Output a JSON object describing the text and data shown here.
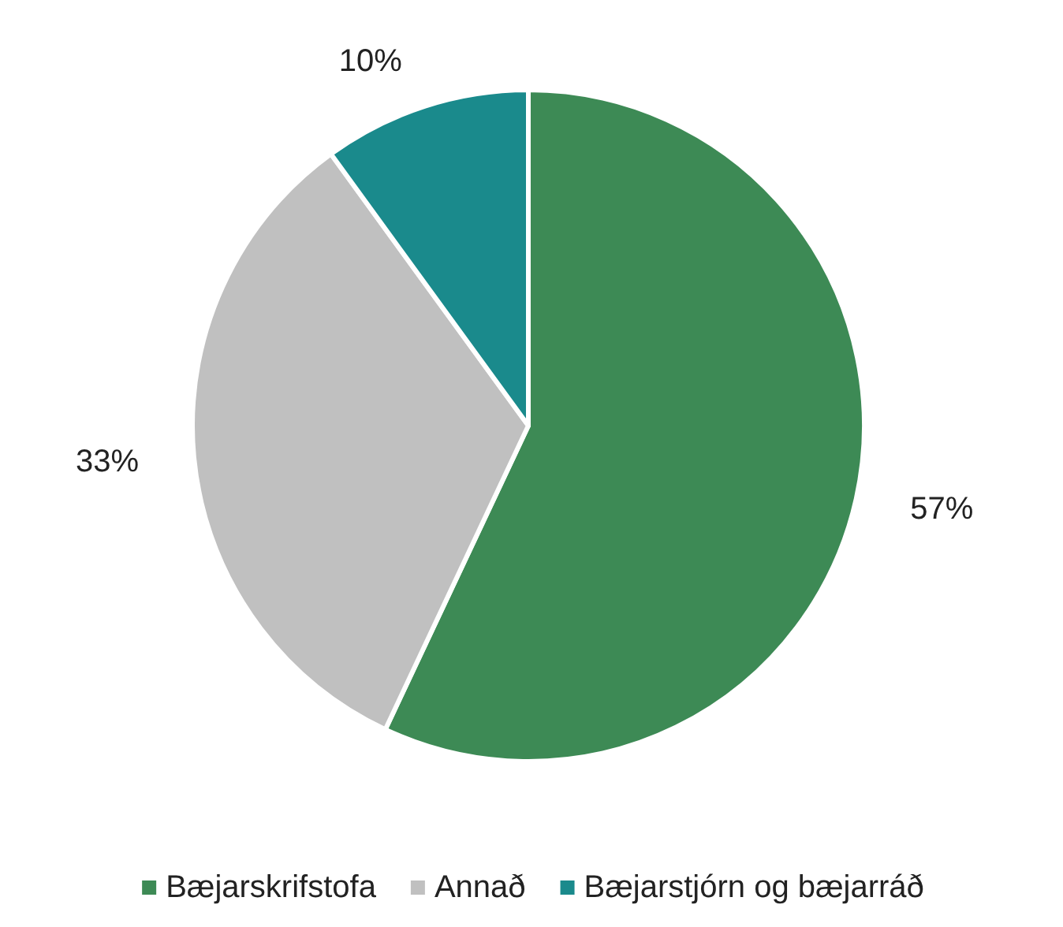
{
  "chart_data": {
    "type": "pie",
    "categories": [
      "Bæjarskrifstofa",
      "Annað",
      "Bæjarstjórn og bæjarráð"
    ],
    "values": [
      57,
      33,
      10
    ],
    "colors": [
      "#3d8a55",
      "#c0c0c0",
      "#1a8a8c"
    ],
    "value_labels": [
      "57%",
      "33%",
      "10%"
    ],
    "legend": "bottom"
  }
}
